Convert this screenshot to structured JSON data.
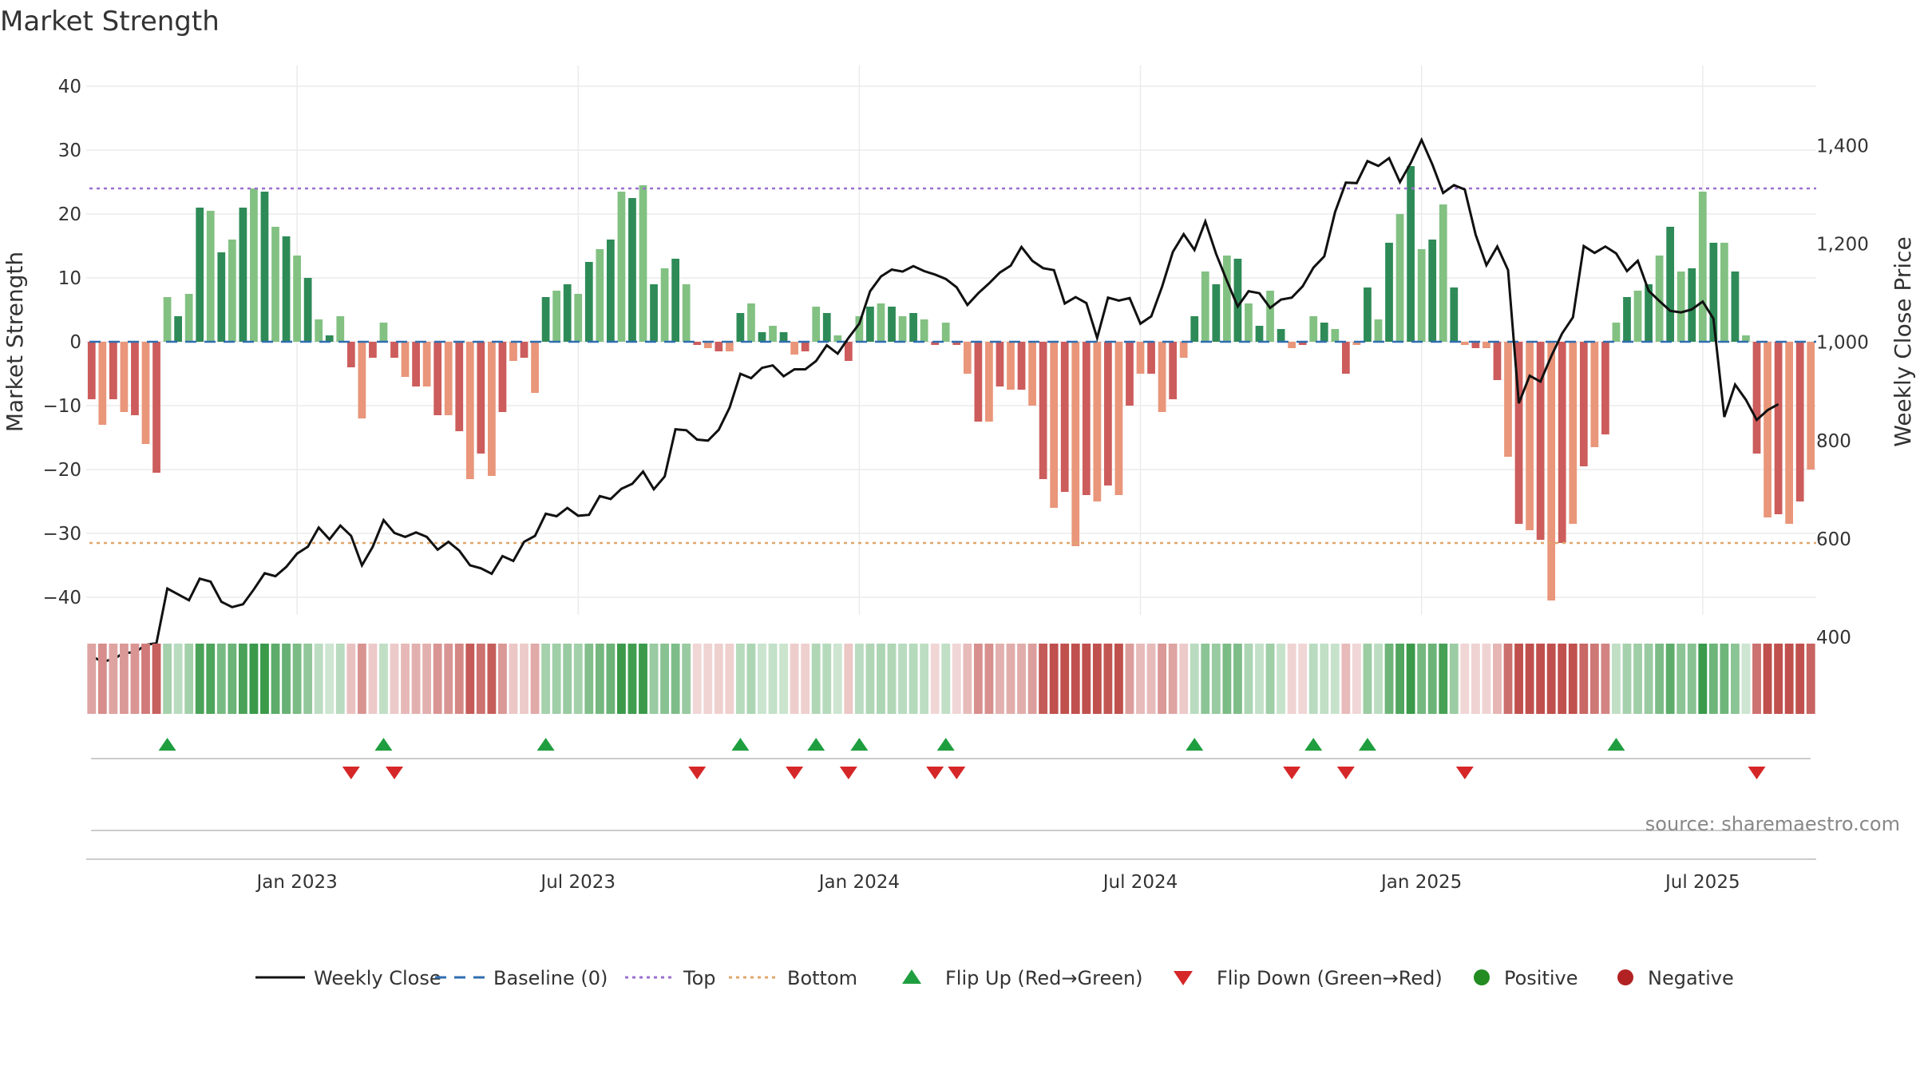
{
  "chart_data": {
    "type": "bar",
    "title": "Market Strength",
    "ylabel_left": "Market Strength",
    "ylabel_right": "Weekly Close Price",
    "ylim_left": [
      -44,
      44
    ],
    "ylim_right": [
      300,
      1400
    ],
    "left_ticks": [
      40,
      30,
      20,
      10,
      0,
      -10,
      -20,
      -30,
      -40
    ],
    "left_tick_labels": [
      "40",
      "30",
      "20",
      "10",
      "0",
      "−10",
      "−20",
      "−30",
      "−40"
    ],
    "right_ticks": [
      400,
      600,
      800,
      1000,
      1200,
      1400
    ],
    "right_tick_labels": [
      "400",
      "600",
      "800",
      "1,000",
      "1,200",
      "1,400"
    ],
    "x_ticks": [
      {
        "week": 19,
        "label": "Jan 2023"
      },
      {
        "week": 45,
        "label": "Jul 2023"
      },
      {
        "week": 71,
        "label": "Jan 2024"
      },
      {
        "week": 97,
        "label": "Jul 2024"
      },
      {
        "week": 123,
        "label": "Jan 2025"
      },
      {
        "week": 149,
        "label": "Jul 2025"
      }
    ],
    "top_line": 24,
    "bottom_line": -31.5,
    "baseline": 0,
    "source": "source: sharemaestro.com",
    "strength": [
      -9,
      -13,
      -9,
      -11,
      -11.5,
      -16,
      -20.5,
      7,
      4,
      7.5,
      21,
      20.5,
      14,
      16,
      21,
      24,
      23.5,
      18,
      16.5,
      13.5,
      10,
      3.5,
      1,
      4,
      -4,
      -12,
      -2.5,
      3,
      -2.5,
      -5.5,
      -7,
      -7,
      -11.5,
      -11.5,
      -14,
      -21.5,
      -17.5,
      -21,
      -11,
      -3,
      -2.5,
      -8,
      7,
      8,
      9,
      7.5,
      12.5,
      14.5,
      16,
      23.5,
      22.5,
      24.5,
      9,
      11.5,
      13,
      9,
      -0.5,
      -1,
      -1.5,
      -1.5,
      4.5,
      6,
      1.5,
      2.5,
      1.5,
      -2,
      -1.5,
      5.5,
      4.5,
      1,
      -3,
      4,
      5.5,
      6,
      5.5,
      4,
      4.5,
      3.5,
      -0.5,
      3,
      -0.5,
      -5,
      -12.5,
      -12.5,
      -7,
      -7.5,
      -7.5,
      -10,
      -21.5,
      -26,
      -23.5,
      -32,
      -24,
      -25,
      -22.5,
      -24,
      -10,
      -5,
      -5,
      -11,
      -9,
      -2.5,
      4,
      11,
      9,
      13.5,
      13,
      6,
      2.5,
      8,
      2,
      -1,
      -0.5,
      4,
      3,
      2,
      -5,
      -0.5,
      8.5,
      3.5,
      15.5,
      20,
      27.5,
      14.5,
      16,
      21.5,
      8.5,
      -0.5,
      -1,
      -1,
      -6,
      -18,
      -28.5,
      -29.5,
      -31,
      -40.5,
      -31.5,
      -28.5,
      -19.5,
      -16.5,
      -14.5,
      3,
      7,
      8,
      9,
      13.5,
      18,
      11,
      11.5,
      23.5,
      15.5,
      15.5,
      11,
      1,
      -17.5,
      -27.5,
      -27,
      -28.5,
      -25,
      -20
    ],
    "close": [
      361,
      350,
      355,
      368,
      369,
      384,
      388,
      499,
      487,
      475,
      519,
      513,
      472,
      461,
      467,
      497,
      530,
      524,
      543,
      570,
      584,
      623,
      599,
      627,
      606,
      546,
      584,
      638,
      612,
      604,
      613,
      604,
      578,
      594,
      576,
      546,
      540,
      529,
      565,
      555,
      594,
      606,
      651,
      646,
      663,
      647,
      649,
      687,
      681,
      702,
      712,
      737,
      701,
      727,
      823,
      821,
      802,
      800,
      822,
      867,
      936,
      927,
      948,
      953,
      931,
      945,
      945,
      962,
      994,
      977,
      1009,
      1038,
      1104,
      1134,
      1148,
      1144,
      1155,
      1145,
      1138,
      1129,
      1112,
      1076,
      1100,
      1120,
      1142,
      1156,
      1194,
      1166,
      1151,
      1147,
      1079,
      1092,
      1080,
      1009,
      1091,
      1085,
      1090,
      1038,
      1053,
      1113,
      1184,
      1220,
      1188,
      1246,
      1180,
      1125,
      1073,
      1104,
      1100,
      1070,
      1087,
      1091,
      1114,
      1152,
      1175,
      1265,
      1325,
      1324,
      1369,
      1359,
      1375,
      1326,
      1365,
      1412,
      1362,
      1304,
      1320,
      1311,
      1219,
      1157,
      1195,
      1147,
      876,
      932,
      920,
      972,
      1018,
      1051,
      1196,
      1182,
      1195,
      1181,
      1145,
      1166,
      1105,
      1084,
      1064,
      1061,
      1067,
      1083,
      1048,
      848,
      914,
      883,
      842,
      862,
      874
    ]
  },
  "legend": [
    {
      "label": "Weekly Close",
      "symbol": "line-solid",
      "color": "#111111"
    },
    {
      "label": "Baseline (0)",
      "symbol": "line-dash",
      "color": "#2f6db0"
    },
    {
      "label": "Top",
      "symbol": "line-dot",
      "color": "#9b6fd1"
    },
    {
      "label": "Bottom",
      "symbol": "line-dot",
      "color": "#e0a66a"
    },
    {
      "label": "Flip Up (Red→Green)",
      "symbol": "triangle-up",
      "color": "#1f9e3f"
    },
    {
      "label": "Flip Down (Green→Red)",
      "symbol": "triangle-down",
      "color": "#d62728"
    },
    {
      "label": "Positive",
      "symbol": "circle",
      "color": "#228b22"
    },
    {
      "label": "Negative",
      "symbol": "circle",
      "color": "#b22222"
    }
  ],
  "colors": {
    "pos_strong": "#2e8b57",
    "pos_light": "#82c182",
    "neg_strong": "#cd5c5c",
    "neg_light": "#e9967a",
    "line": "#111111",
    "baseline": "#2f6db0",
    "top": "#9b6fd1",
    "bottom": "#e0a66a",
    "grid": "#ebebeb"
  }
}
